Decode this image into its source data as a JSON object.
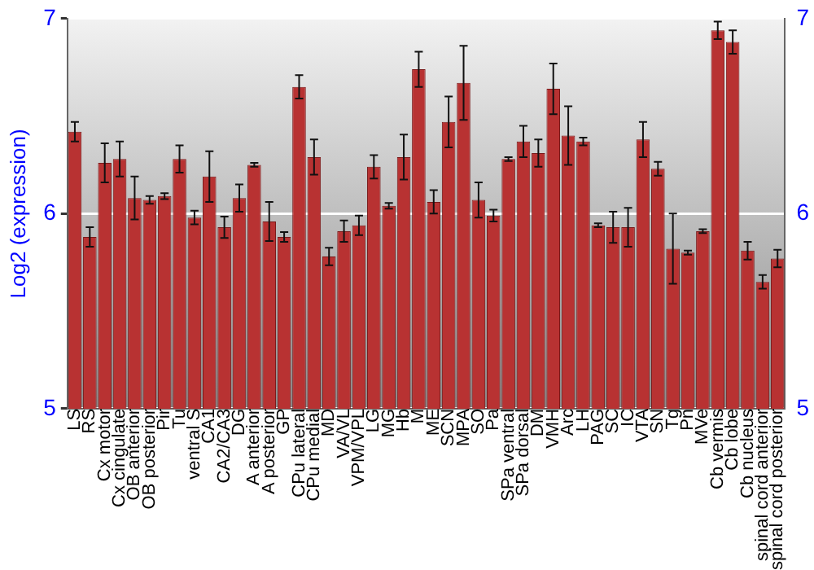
{
  "chart_data": {
    "type": "bar",
    "ylabel": "Log2 (expression)",
    "categories": [
      "LS",
      "RS",
      "Cx motor",
      "Cx cingulate",
      "OB anterior",
      "OB posterior",
      "Pir",
      "Tu",
      "ventral S",
      "CA1",
      "CA2/CA3",
      "DG",
      "A anterior",
      "A posterior",
      "GP",
      "CPu lateral",
      "CPu medial",
      "MD",
      "VA/VL",
      "VPM/VPL",
      "LG",
      "MG",
      "Hb",
      "M",
      "ME",
      "SCN",
      "MPA",
      "SO",
      "Pa",
      "SPa ventral",
      "SPa dorsal",
      "DM",
      "VMH",
      "Arc",
      "LH",
      "PAG",
      "SC",
      "IC",
      "VTA",
      "SN",
      "Tg",
      "Pn",
      "MVe",
      "Cb vermis",
      "Cb lobe",
      "Cb nucleus",
      "spinal cord anterior",
      "spinal cord posterior"
    ],
    "values": [
      6.42,
      5.88,
      6.26,
      6.28,
      6.08,
      6.07,
      6.09,
      6.28,
      5.98,
      6.19,
      5.93,
      6.08,
      6.25,
      5.96,
      5.88,
      6.65,
      6.29,
      5.78,
      5.91,
      5.94,
      6.24,
      6.04,
      6.29,
      6.74,
      6.06,
      6.47,
      6.67,
      6.07,
      5.99,
      6.28,
      6.37,
      6.31,
      6.64,
      6.4,
      6.37,
      5.94,
      5.93,
      5.93,
      6.38,
      6.23,
      5.82,
      5.8,
      5.91,
      6.94,
      6.88,
      5.81,
      5.65,
      5.77
    ],
    "errors": [
      0.05,
      0.05,
      0.1,
      0.09,
      0.11,
      0.02,
      0.015,
      0.07,
      0.035,
      0.13,
      0.055,
      0.07,
      0.01,
      0.1,
      0.025,
      0.06,
      0.09,
      0.045,
      0.055,
      0.05,
      0.06,
      0.015,
      0.115,
      0.09,
      0.06,
      0.13,
      0.19,
      0.09,
      0.03,
      0.01,
      0.08,
      0.07,
      0.13,
      0.15,
      0.02,
      0.01,
      0.08,
      0.1,
      0.09,
      0.035,
      0.18,
      0.01,
      0.01,
      0.045,
      0.06,
      0.045,
      0.035,
      0.045
    ],
    "color": "#b83232",
    "ylim": [
      5,
      7
    ],
    "yticks": [
      5,
      6,
      7
    ],
    "y2lim": [
      5,
      7
    ],
    "y2ticks": [
      5,
      6,
      7
    ],
    "grid": "y",
    "legend": false
  }
}
